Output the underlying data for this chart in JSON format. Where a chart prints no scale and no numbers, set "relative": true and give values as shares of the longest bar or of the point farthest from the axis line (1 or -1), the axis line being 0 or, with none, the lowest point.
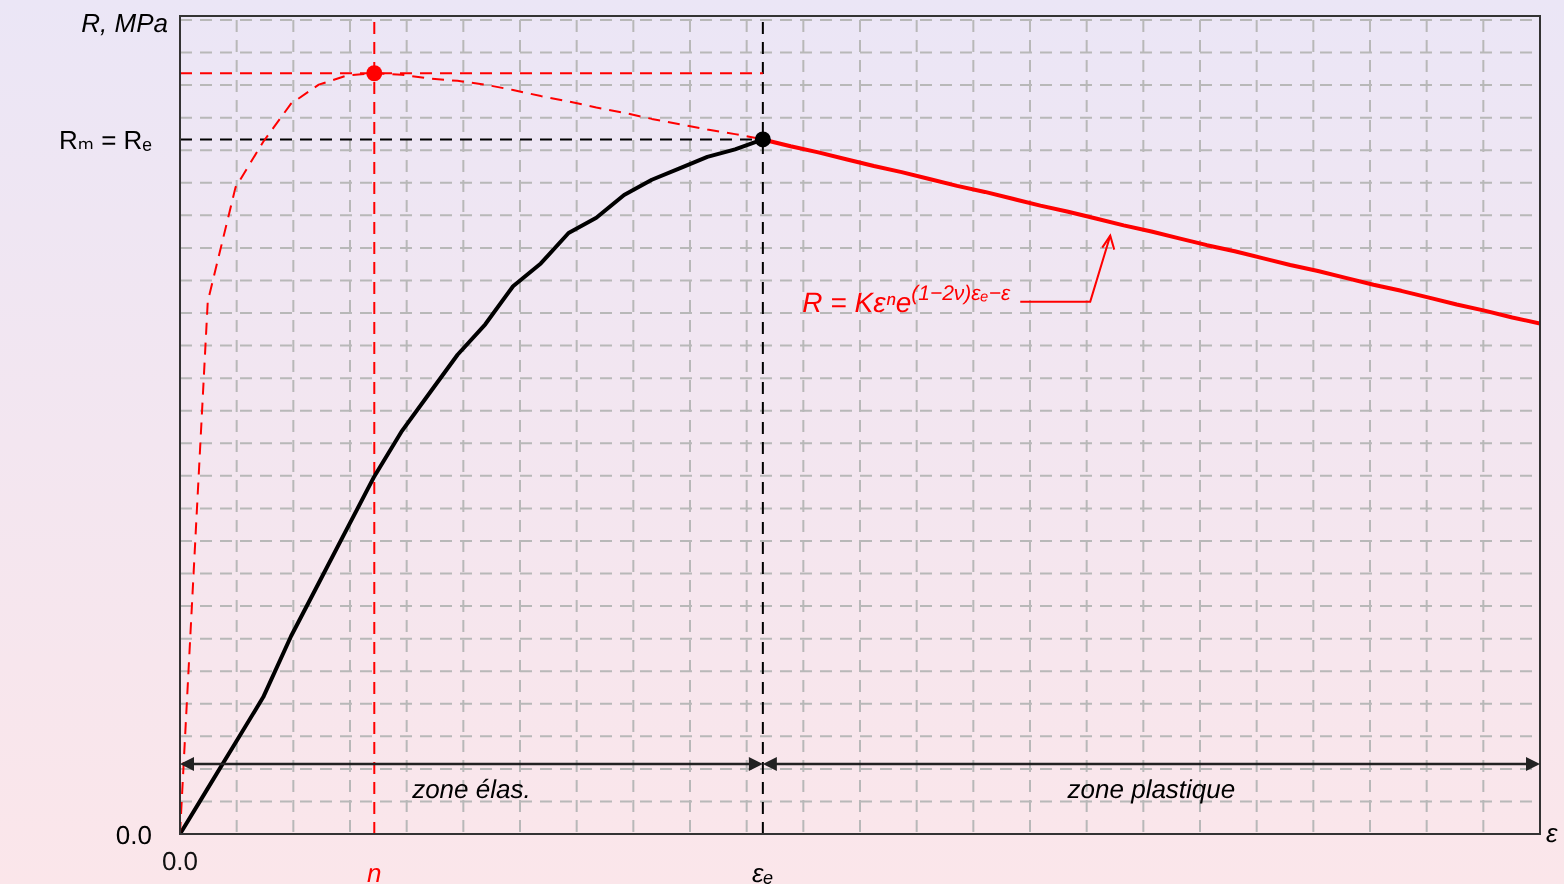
{
  "chart_data": {
    "type": "line",
    "relative": true,
    "ylabel": "R, MPa",
    "xlabel": "ε",
    "grid": true,
    "categories": [
      "0.0",
      null,
      null,
      null,
      null,
      null,
      null,
      "n",
      null,
      null,
      null,
      null,
      null,
      null,
      null,
      null,
      null,
      null,
      null,
      null,
      null,
      "εₑ",
      null,
      null,
      null,
      null,
      null,
      null,
      null,
      null,
      null,
      null,
      null,
      null,
      null,
      null,
      null,
      null,
      null,
      null,
      null,
      null,
      null,
      null,
      null,
      null,
      null,
      null,
      null,
      null
    ],
    "series": [
      {
        "color": "#000000",
        "line_style": "solid",
        "values": [
          0,
          0.06,
          0.12,
          0.18,
          0.26,
          0.33,
          0.4,
          0.47,
          0.53,
          0.58,
          0.63,
          0.67,
          0.72,
          0.75,
          0.79,
          0.81,
          0.84,
          0.86,
          0.875,
          0.89,
          0.9,
          0.913,
          null,
          null,
          null,
          null,
          null,
          null,
          null,
          null,
          null,
          null,
          null,
          null,
          null,
          null,
          null,
          null,
          null,
          null,
          null,
          null,
          null,
          null,
          null,
          null,
          null,
          null,
          null,
          null
        ]
      },
      {
        "color": "#ff0000",
        "line_style": "dashed",
        "values": [
          0,
          0.7,
          0.85,
          0.91,
          0.96,
          0.985,
          0.997,
          1,
          0.998,
          0.993,
          0.99,
          0.985,
          0.978,
          0.97,
          0.963,
          0.955,
          0.948,
          0.94,
          0.933,
          0.926,
          0.92,
          0.913,
          null,
          null,
          null,
          null,
          null,
          null,
          null,
          null,
          null,
          null,
          null,
          null,
          null,
          null,
          null,
          null,
          null,
          null,
          null,
          null,
          null,
          null,
          null,
          null,
          null,
          null,
          null,
          null
        ]
      },
      {
        "color": "#ff0000",
        "line_style": "solid",
        "values": [
          null,
          null,
          null,
          null,
          null,
          null,
          null,
          null,
          null,
          null,
          null,
          null,
          null,
          null,
          null,
          null,
          null,
          null,
          null,
          null,
          null,
          0.913,
          0.904,
          0.896,
          0.887,
          0.878,
          0.87,
          0.861,
          0.852,
          0.844,
          0.835,
          0.826,
          0.818,
          0.809,
          0.8,
          0.792,
          0.783,
          0.774,
          0.766,
          0.757,
          0.748,
          0.74,
          0.731,
          0.722,
          0.714,
          0.705,
          0.696,
          0.688,
          0.679,
          0.671
        ]
      }
    ],
    "ref_lines": [
      {
        "axis": "x",
        "value": "n",
        "color": "#ff0000",
        "line_style": "dashed"
      },
      {
        "axis": "x",
        "value": "εₑ",
        "color": "#000000",
        "line_style": "dashed"
      },
      {
        "axis": "y",
        "value": 0.913,
        "label": "Rₘ = Rₑ",
        "color": "#000000",
        "line_style": "dashed"
      },
      {
        "axis": "y",
        "value": 1,
        "color": "#ff0000",
        "line_style": "dashed"
      }
    ],
    "annotations": [
      "R = Kεⁿe$^{(1−2ν)εₑ−ε}$",
      "zone élas.",
      "zone plastique",
      "0.0"
    ]
  }
}
